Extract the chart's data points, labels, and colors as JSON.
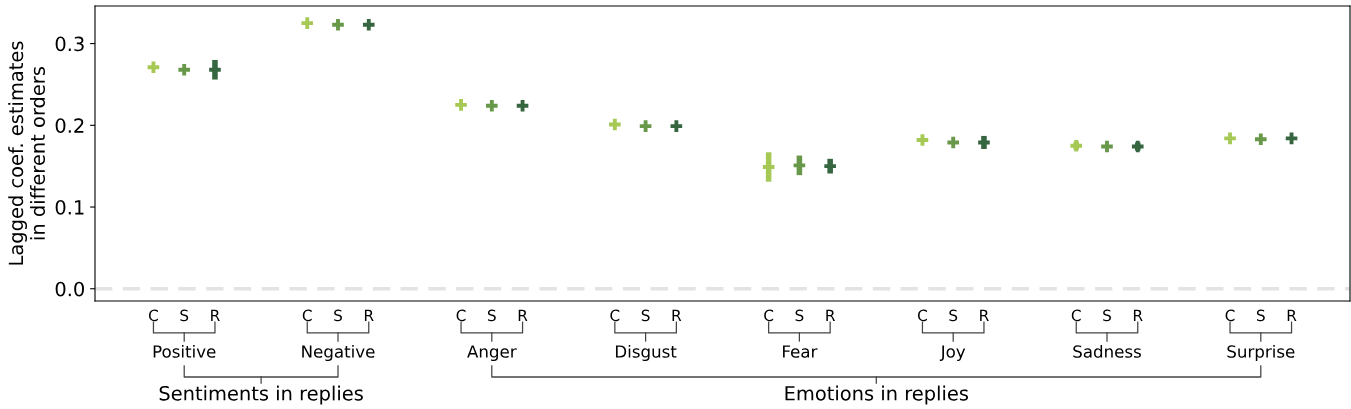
{
  "chart_data": {
    "type": "scatter",
    "ylabel": "Lagged coef. estimates\nin different orders",
    "categories": [
      "C",
      "S",
      "R",
      null,
      null,
      "C",
      "S",
      "R",
      null,
      null,
      "C",
      "S",
      "R",
      null,
      null,
      "C",
      "S",
      "R",
      null,
      null,
      "C",
      "S",
      "R",
      null,
      null,
      "C",
      "S",
      "R",
      null,
      null,
      "C",
      "S",
      "R",
      null,
      null,
      "C",
      "S",
      "R"
    ],
    "values": [
      0.271,
      0.268,
      0.268,
      null,
      null,
      0.325,
      0.323,
      0.323,
      null,
      null,
      0.225,
      0.224,
      0.224,
      null,
      null,
      0.201,
      0.199,
      0.199,
      null,
      null,
      0.149,
      0.151,
      0.15,
      null,
      null,
      0.182,
      0.179,
      0.179,
      null,
      null,
      0.175,
      0.174,
      0.174,
      null,
      null,
      0.184,
      0.183,
      0.184
    ],
    "errors": [
      null,
      null,
      0.012,
      null,
      null,
      null,
      null,
      null,
      null,
      null,
      null,
      null,
      null,
      null,
      null,
      null,
      null,
      null,
      null,
      null,
      0.018,
      0.012,
      0.009,
      null,
      null,
      null,
      null,
      0.008,
      null,
      null,
      0.005,
      null,
      0.005,
      null,
      null,
      null,
      null,
      null
    ],
    "colors": [
      "#a6c956",
      "#68994a",
      "#356640",
      null,
      null,
      "#a6c956",
      "#68994a",
      "#356640",
      null,
      null,
      "#a6c956",
      "#68994a",
      "#356640",
      null,
      null,
      "#a6c956",
      "#68994a",
      "#356640",
      null,
      null,
      "#a6c956",
      "#68994a",
      "#356640",
      null,
      null,
      "#a6c956",
      "#68994a",
      "#356640",
      null,
      null,
      "#a6c956",
      "#68994a",
      "#356640",
      null,
      null,
      "#a6c956",
      "#68994a",
      "#356640"
    ],
    "ylim": [
      -0.015,
      0.346
    ],
    "yticks": [
      {
        "value": 0,
        "label": "0.0"
      },
      0.1,
      0.2,
      0.3
    ],
    "ref_lines": [
      {
        "axis": "y",
        "value": 0,
        "color": "#e3e3e3",
        "line_style": "dashed"
      }
    ],
    "annotations": [
      "Positive",
      "Negative",
      "Anger",
      "Disgust",
      "Fear",
      "Joy",
      "Sadness",
      "Surprise",
      "Sentiments in replies",
      "Emotions in replies"
    ],
    "marker": "cross",
    "grid": false,
    "legend": false
  }
}
